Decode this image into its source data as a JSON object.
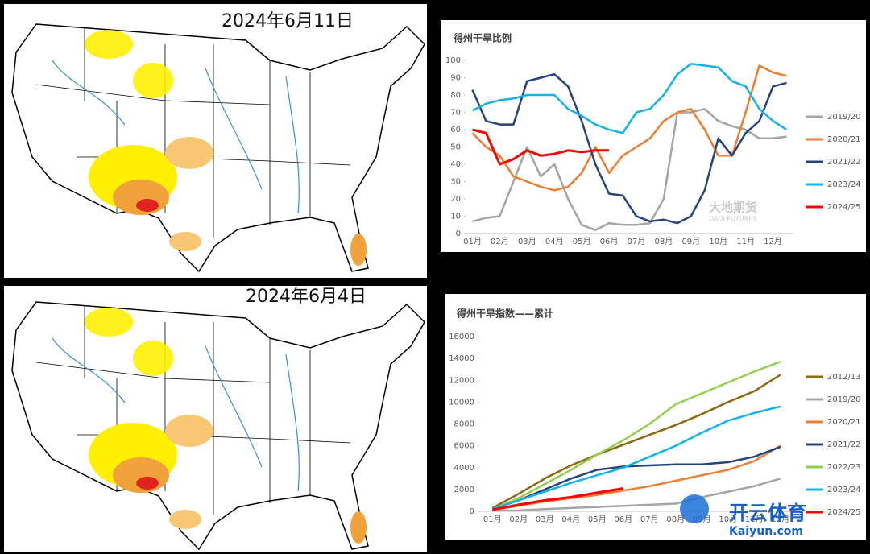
{
  "maps": [
    {
      "title": "2024年6月11日"
    },
    {
      "title": "2024年6月4日"
    }
  ],
  "watermark": {
    "brand": "开云体育",
    "url": "Kaiyun.com"
  },
  "chart_data": [
    {
      "type": "line",
      "title": "得州干旱比例",
      "legend": "right",
      "grid": false,
      "watermark": [
        "大地期货",
        "DADI FUTURES"
      ],
      "categories": [
        "01月",
        null,
        "02月",
        null,
        "03月",
        null,
        "04月",
        null,
        "05月",
        null,
        "06月",
        null,
        "07月",
        null,
        "08月",
        null,
        "09月",
        null,
        "10月",
        null,
        "11月",
        null,
        "12月",
        null
      ],
      "ylim": [
        0,
        100
      ],
      "yticks": [
        0,
        10,
        20,
        30,
        40,
        50,
        60,
        70,
        80,
        90,
        100
      ],
      "series": [
        {
          "name": "2019/20",
          "color": "#a5a5a5",
          "values": [
            7,
            9,
            10,
            30,
            50,
            33,
            40,
            20,
            5,
            2,
            6,
            5,
            5,
            6,
            20,
            70,
            70,
            72,
            65,
            62,
            60,
            55,
            55,
            56
          ]
        },
        {
          "name": "2020/21",
          "color": "#ed7d31",
          "values": [
            58,
            50,
            45,
            33,
            30,
            27,
            25,
            27,
            35,
            50,
            35,
            45,
            50,
            55,
            65,
            70,
            72,
            60,
            45,
            45,
            70,
            97,
            93,
            91
          ]
        },
        {
          "name": "2021/22",
          "color": "#264478",
          "values": [
            83,
            65,
            63,
            63,
            88,
            90,
            92,
            85,
            65,
            40,
            23,
            22,
            10,
            7,
            8,
            6,
            10,
            25,
            55,
            45,
            58,
            65,
            85,
            87
          ]
        },
        {
          "name": "2023/24",
          "color": "#12b2ec",
          "values": [
            71,
            75,
            77,
            78,
            80,
            80,
            80,
            72,
            68,
            63,
            60,
            58,
            70,
            72,
            80,
            92,
            98,
            97,
            96,
            88,
            85,
            72,
            65,
            60
          ]
        },
        {
          "name": "2024/25",
          "color": "#ff0000",
          "values": [
            60,
            58,
            40,
            43,
            48,
            45,
            46,
            48,
            47,
            48,
            48,
            null,
            null,
            null,
            null,
            null,
            null,
            null,
            null,
            null,
            null,
            null,
            null,
            null
          ]
        }
      ]
    },
    {
      "type": "line",
      "title": "得州干旱指数——累计",
      "legend": "right",
      "grid": false,
      "categories": [
        "01月",
        "02月",
        "03月",
        "04月",
        "05月",
        "06月",
        "07月",
        "08月",
        "09月",
        "10月",
        "11月",
        "12月"
      ],
      "ylim": [
        0,
        16000
      ],
      "yticks": [
        0,
        2000,
        4000,
        6000,
        8000,
        10000,
        12000,
        14000,
        16000
      ],
      "series": [
        {
          "name": "2012/13",
          "color": "#8c6a14",
          "values": [
            300,
            1600,
            3000,
            4200,
            5200,
            6100,
            7000,
            7900,
            8900,
            10000,
            11000,
            12500
          ]
        },
        {
          "name": "2019/20",
          "color": "#a5a5a5",
          "values": [
            50,
            80,
            200,
            300,
            400,
            500,
            600,
            700,
            1300,
            1800,
            2300,
            3000
          ]
        },
        {
          "name": "2020/21",
          "color": "#ed7d31",
          "values": [
            150,
            500,
            900,
            1200,
            1500,
            1900,
            2300,
            2800,
            3300,
            3800,
            4600,
            6000
          ]
        },
        {
          "name": "2021/22",
          "color": "#264478",
          "values": [
            200,
            1000,
            2000,
            3000,
            3800,
            4100,
            4200,
            4300,
            4300,
            4500,
            5000,
            5900
          ]
        },
        {
          "name": "2022/23",
          "color": "#92d050",
          "values": [
            200,
            1200,
            2500,
            3800,
            5200,
            6500,
            8000,
            9800,
            10800,
            11800,
            12800,
            13700
          ]
        },
        {
          "name": "2023/24",
          "color": "#12b2ec",
          "values": [
            200,
            1000,
            1800,
            2600,
            3300,
            4000,
            5000,
            6000,
            7200,
            8300,
            9000,
            9600
          ]
        },
        {
          "name": "2024/25",
          "color": "#ff0000",
          "values": [
            150,
            600,
            1000,
            1300,
            1700,
            2100,
            null,
            null,
            null,
            null,
            null,
            null
          ]
        }
      ]
    }
  ]
}
